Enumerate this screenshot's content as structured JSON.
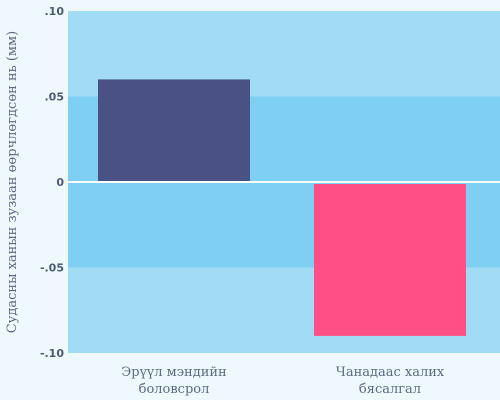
{
  "chart_data": {
    "type": "bar",
    "title": "",
    "xlabel": "",
    "ylabel": "Судасны ханын зузаан өөрчлөгдсөн нь (мм)",
    "ylim": [
      -0.1,
      0.1
    ],
    "yticks": [
      {
        "value": 0.1,
        "label": ".10"
      },
      {
        "value": 0.05,
        "label": ".05"
      },
      {
        "value": 0,
        "label": "0"
      },
      {
        "value": -0.05,
        "label": "-.05"
      },
      {
        "value": -0.1,
        "label": "-.10"
      }
    ],
    "grid": true,
    "categories": [
      [
        "Эрүүл мэндийн",
        "боловсрол"
      ],
      [
        "Чанадаас халих",
        "бясалгал"
      ]
    ],
    "values": [
      0.06,
      -0.09
    ],
    "bar_colors": [
      "#4a5285",
      "#ff4f86"
    ],
    "band_colors": [
      "#a1dcf4",
      "#7fcff3"
    ]
  }
}
